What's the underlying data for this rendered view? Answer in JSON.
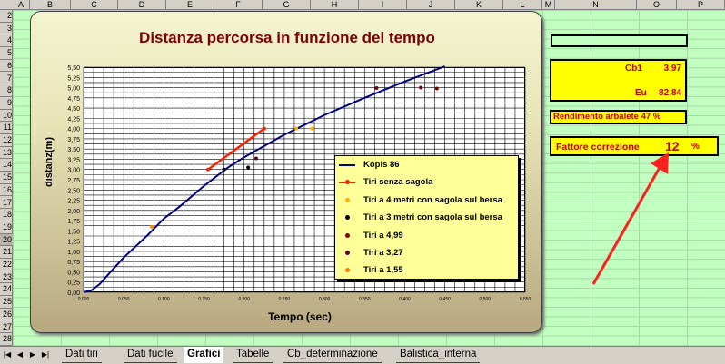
{
  "columns": [
    "A",
    "B",
    "C",
    "D",
    "E",
    "F",
    "G",
    "H",
    "I",
    "J",
    "K",
    "L",
    "M",
    "N",
    "O",
    "P"
  ],
  "rows": [
    "2",
    "3",
    "4",
    "5",
    "6",
    "7",
    "8",
    "9",
    "10",
    "11",
    "12",
    "13",
    "14",
    "15",
    "16",
    "17",
    "18",
    "19",
    "20",
    "21",
    "22",
    "23",
    "24",
    "25",
    "26",
    "27",
    "28"
  ],
  "selected_row": "20",
  "chart_data": {
    "type": "line",
    "title": "Distanza percorsa in funzione del tempo",
    "xlabel": "Tempo (sec)",
    "ylabel": "distanz(m)",
    "xlim": [
      0,
      0.55
    ],
    "ylim": [
      0,
      5.5
    ],
    "x_tick_labels": [
      "0,000",
      "0,050",
      "0,100",
      "0,150",
      "0,200",
      "0,250",
      "0,300",
      "0,350",
      "0,400",
      "0,450",
      "0,500",
      "0,550"
    ],
    "y_tick_labels": [
      "0,00",
      "0,25",
      "0,50",
      "0,75",
      "1,00",
      "1,25",
      "1,50",
      "1,75",
      "2,00",
      "2,25",
      "2,50",
      "2,75",
      "3,00",
      "3,25",
      "3,50",
      "3,75",
      "4,00",
      "4,25",
      "4,50",
      "4,75",
      "5,00",
      "5,25",
      "5,50"
    ],
    "grid": true,
    "legend_position": "right",
    "series": [
      {
        "name": "Kopis 86",
        "kind": "line",
        "color": "#000080",
        "x": [
          0.0,
          0.01,
          0.02,
          0.03,
          0.05,
          0.08,
          0.1,
          0.12,
          0.15,
          0.18,
          0.2,
          0.25,
          0.3,
          0.35,
          0.4,
          0.45
        ],
        "y": [
          0.0,
          0.05,
          0.2,
          0.42,
          0.85,
          1.4,
          1.8,
          2.1,
          2.6,
          3.05,
          3.3,
          3.85,
          4.33,
          4.75,
          5.15,
          5.52
        ]
      },
      {
        "name": "Tiri senza sagola",
        "kind": "line-marker",
        "color": "#ff2000",
        "x": [
          0.155,
          0.225
        ],
        "y": [
          3.0,
          4.0
        ]
      },
      {
        "name": "Tiri a 4 metri con sagola sul bersa",
        "kind": "marker",
        "color": "#ffb000",
        "x": [
          0.265,
          0.285
        ],
        "y": [
          4.0,
          4.0
        ]
      },
      {
        "name": "Tiri a 3 metri con sagola sul bersa",
        "kind": "marker",
        "color": "#000000",
        "x": [
          0.175,
          0.205
        ],
        "y": [
          3.0,
          3.05
        ]
      },
      {
        "name": "Tiri a 4,99",
        "kind": "marker",
        "color": "#800000",
        "x": [
          0.365,
          0.42,
          0.44
        ],
        "y": [
          4.99,
          5.0,
          4.98
        ]
      },
      {
        "name": "Tiri a 3,27",
        "kind": "marker",
        "color": "#600020",
        "x": [
          0.215
        ],
        "y": [
          3.27
        ]
      },
      {
        "name": "Tiri a 1,55",
        "kind": "marker",
        "color": "#ff8000",
        "x": [
          0.085
        ],
        "y": [
          1.6
        ]
      }
    ]
  },
  "panel": {
    "cb1_label": "Cb1",
    "cb1_value": "3,97",
    "eu_label": "Eu",
    "eu_value": "82,84",
    "rendimento": "Rendimento arbalete  47 %",
    "fattore_label": "Fattore correzione",
    "fattore_value": "12",
    "fattore_unit": "%"
  },
  "colors": {
    "arrow": "#ff2020",
    "panel_bg": "#ffff00",
    "panel_text": "#c00000",
    "sheet_bg": "#c0ffc0"
  },
  "tabs": [
    {
      "label": "Dati tiri",
      "active": false
    },
    {
      "label": "Dati fucile",
      "active": false
    },
    {
      "label": "Grafici",
      "active": true
    },
    {
      "label": "Tabelle",
      "active": false
    },
    {
      "label": "Cb_determinazione",
      "active": false
    },
    {
      "label": "Balistica_interna",
      "active": false
    }
  ],
  "nav_icons": [
    "first-sheet-icon",
    "prev-sheet-icon",
    "next-sheet-icon",
    "last-sheet-icon"
  ]
}
